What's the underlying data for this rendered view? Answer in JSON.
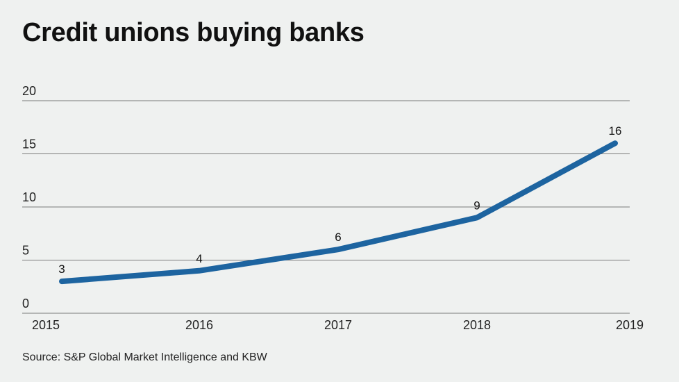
{
  "chart_data": {
    "type": "line",
    "title": "Credit unions buying banks",
    "source": "Source: S&P Global Market Intelligence and KBW",
    "categories": [
      "2015",
      "2016",
      "2017",
      "2018",
      "2019"
    ],
    "series": [
      {
        "name": "Credit unions buying banks",
        "values": [
          3,
          4,
          6,
          9,
          16
        ]
      }
    ],
    "data_labels": [
      "3",
      "4",
      "6",
      "9",
      "16"
    ],
    "y_ticks": [
      "0",
      "5",
      "10",
      "15",
      "20"
    ],
    "ylim": [
      0,
      20
    ],
    "xlabel": "",
    "ylabel": "",
    "grid": true,
    "legend": "none",
    "colors": {
      "line": "#1d64a0",
      "grid": "#7a7a7a",
      "background": "#eff1f0"
    }
  }
}
